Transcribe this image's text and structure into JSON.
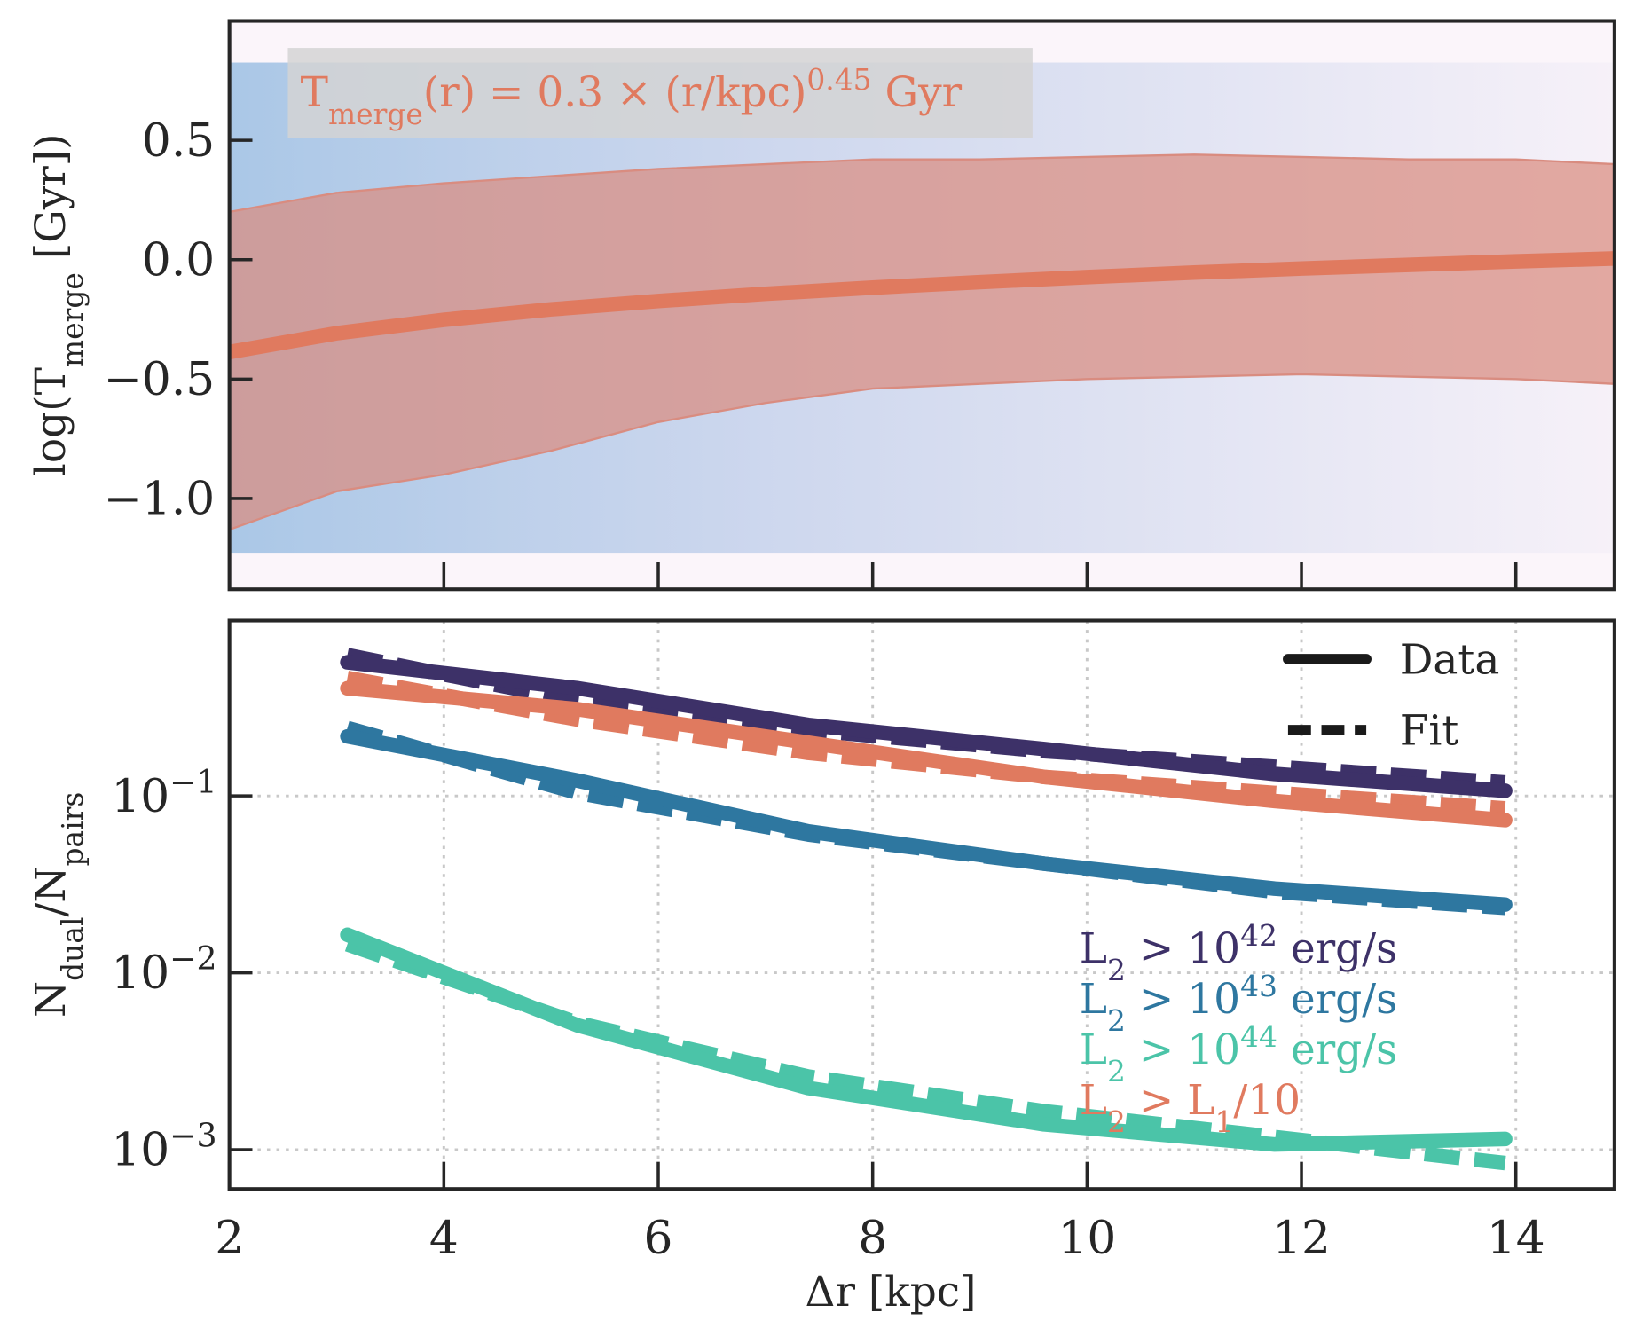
{
  "chart_data": [
    {
      "type": "line",
      "annotation": [
        "T",
        {
          "sub": "merge"
        },
        "(r) = 0.3 × (r/kpc)",
        {
          "sup": "0.45"
        },
        " Gyr"
      ],
      "y_label": [
        "log(T",
        {
          "sub": "merge"
        },
        " [Gyr])"
      ],
      "x": [
        2,
        3,
        4,
        5,
        6,
        7,
        8,
        9,
        10,
        11,
        12,
        13,
        14,
        14.92
      ],
      "values": [
        -0.387,
        -0.308,
        -0.252,
        -0.208,
        -0.173,
        -0.143,
        -0.117,
        -0.094,
        -0.073,
        -0.054,
        -0.037,
        -0.022,
        -0.007,
        0.005
      ],
      "color": "#e07a5f",
      "band": {
        "upper": [
          0.2,
          0.28,
          0.32,
          0.35,
          0.38,
          0.4,
          0.42,
          0.42,
          0.43,
          0.44,
          0.43,
          0.42,
          0.42,
          0.4
        ],
        "lower": [
          -1.13,
          -0.97,
          -0.9,
          -0.8,
          -0.68,
          -0.6,
          -0.54,
          -0.52,
          -0.5,
          -0.49,
          -0.48,
          -0.49,
          -0.5,
          -0.52
        ],
        "color": "#d98c80"
      },
      "xlim": [
        2,
        14.92
      ],
      "ylim": [
        -1.38,
        1.0
      ],
      "yticks": [
        {
          "value": -1.0,
          "label": "−1.0"
        },
        {
          "value": -0.5,
          "label": "−0.5"
        },
        {
          "value": 0,
          "label": "0.0"
        },
        0.5
      ]
    },
    {
      "type": "line",
      "log_y": true,
      "grid": true,
      "x_label": [
        "Δr [kpc]"
      ],
      "y_label": [
        "N",
        {
          "sub": "dual"
        },
        "/N",
        {
          "sub": "pairs"
        }
      ],
      "xlim": [
        2,
        14.92
      ],
      "xticks": [
        2,
        4,
        6,
        8,
        10,
        12,
        14
      ],
      "ylim": [
        0.0006,
        0.98
      ],
      "yticks": [
        {
          "value": 0.001,
          "label": [
            "10",
            {
              "sup": "−3"
            }
          ]
        },
        {
          "value": 0.01,
          "label": [
            "10",
            {
              "sup": "−2"
            }
          ]
        },
        {
          "value": 0.1,
          "label": [
            "10",
            {
              "sup": "−1"
            }
          ]
        }
      ],
      "legend": "upper right",
      "style_legend": [
        "Data",
        "Fit"
      ],
      "x": [
        3.1,
        5.25,
        7.4,
        9.6,
        11.75,
        13.9
      ],
      "series": [
        {
          "name": [
            "L",
            {
              "sub": "2"
            },
            " > 10",
            {
              "sup": "42"
            },
            " erg/s"
          ],
          "color": "#3d3168",
          "values": [
            0.569,
            0.406,
            0.252,
            0.184,
            0.133,
            0.107
          ],
          "fit_values": [
            0.625,
            0.344,
            0.236,
            0.179,
            0.146,
            0.119
          ]
        },
        {
          "name": [
            "L",
            {
              "sub": "2"
            },
            " > 10",
            {
              "sup": "43"
            },
            " erg/s"
          ],
          "color": "#2e77a0",
          "values": [
            0.217,
            0.122,
            0.063,
            0.0414,
            0.0299,
            0.0243
          ],
          "fit_values": [
            0.242,
            0.104,
            0.0605,
            0.0414,
            0.0287,
            0.0233
          ]
        },
        {
          "name": [
            "L",
            {
              "sub": "2"
            },
            " > 10",
            {
              "sup": "44"
            },
            " erg/s"
          ],
          "color": "#4bc4a8",
          "values": [
            0.0164,
            0.00504,
            0.00223,
            0.00139,
            0.00107,
            0.00115
          ],
          "fit_values": [
            0.0145,
            0.0052,
            0.00259,
            0.00165,
            0.00118,
            0.00084
          ]
        },
        {
          "name": [
            "L",
            {
              "sub": "2"
            },
            " > L",
            {
              "sub": "1"
            },
            "/10"
          ],
          "color": "#e07a5f",
          "values": [
            0.406,
            0.309,
            0.2,
            0.128,
            0.0935,
            0.073
          ],
          "fit_values": [
            0.464,
            0.27,
            0.175,
            0.128,
            0.104,
            0.085
          ]
        }
      ]
    }
  ]
}
